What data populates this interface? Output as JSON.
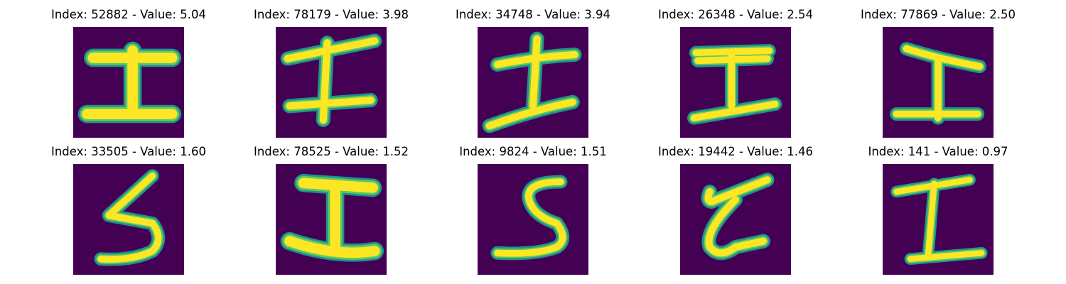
{
  "colors": {
    "background": "#440154",
    "glow": "#21918c",
    "mid": "#5ec962",
    "stroke": "#fde725"
  },
  "panels": [
    {
      "title": "Index: 52882 - Value: 5.04",
      "index": 52882,
      "value": 5.04,
      "glyph": "I"
    },
    {
      "title": "Index: 78179 - Value: 3.98",
      "index": 78179,
      "value": 3.98,
      "glyph": "I"
    },
    {
      "title": "Index: 34748 - Value: 3.94",
      "index": 34748,
      "value": 3.94,
      "glyph": "I"
    },
    {
      "title": "Index: 26348 - Value: 2.54",
      "index": 26348,
      "value": 2.54,
      "glyph": "I"
    },
    {
      "title": "Index: 77869 - Value: 2.50",
      "index": 77869,
      "value": 2.5,
      "glyph": "I"
    },
    {
      "title": "Index: 33505 - Value: 1.60",
      "index": 33505,
      "value": 1.6,
      "glyph": "5"
    },
    {
      "title": "Index: 78525 - Value: 1.52",
      "index": 78525,
      "value": 1.52,
      "glyph": "I"
    },
    {
      "title": "Index: 9824 - Value: 1.51",
      "index": 9824,
      "value": 1.51,
      "glyph": "5"
    },
    {
      "title": "Index: 19442 - Value: 1.46",
      "index": 19442,
      "value": 1.46,
      "glyph": "Z"
    },
    {
      "title": "Index: 141 - Value: 0.97",
      "index": 141,
      "value": 0.97,
      "glyph": "I"
    }
  ]
}
